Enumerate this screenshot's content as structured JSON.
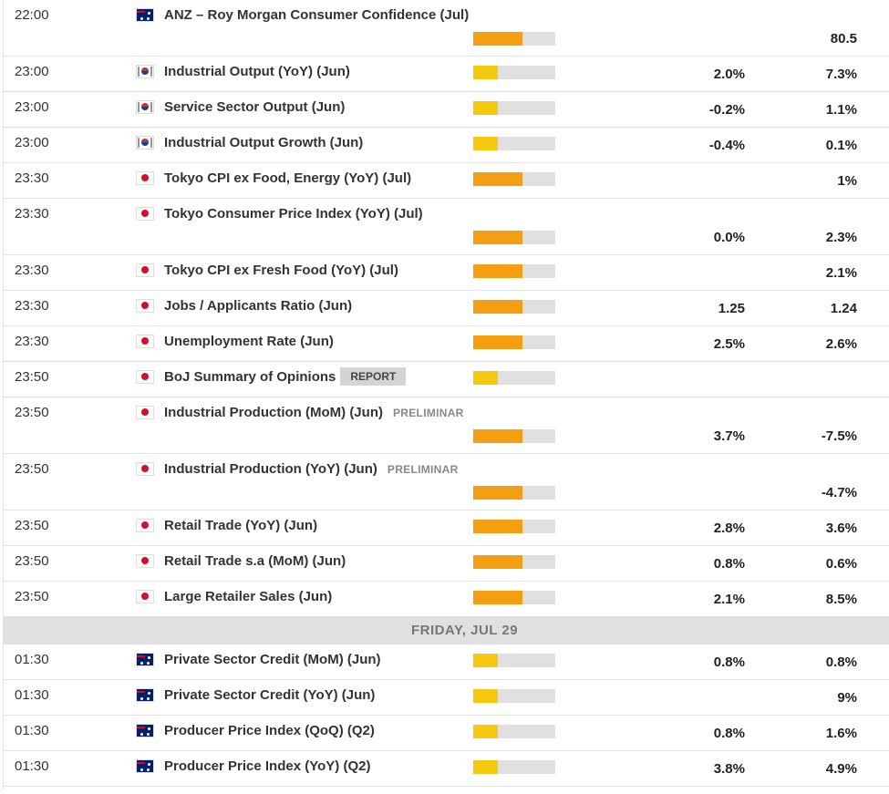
{
  "impact_colors": {
    "1": "#f5c90f",
    "2": "#f49e12"
  },
  "groups": [
    {
      "rows": [
        {
          "time": "22:00",
          "flag": "au",
          "event": "ANZ – Roy Morgan Consumer Confidence (Jul)",
          "impact": 2,
          "actual": null,
          "previous": "80.5"
        },
        {
          "time": "23:00",
          "flag": "kr",
          "event": "Industrial Output (YoY) (Jun)",
          "impact": 1,
          "actual": "2.0%",
          "previous": "7.3%"
        },
        {
          "time": "23:00",
          "flag": "kr",
          "event": "Service Sector Output (Jun)",
          "impact": 1,
          "actual": "-0.2%",
          "previous": "1.1%"
        },
        {
          "time": "23:00",
          "flag": "kr",
          "event": "Industrial Output Growth (Jun)",
          "impact": 1,
          "actual": "-0.4%",
          "previous": "0.1%"
        },
        {
          "time": "23:30",
          "flag": "jp",
          "event": "Tokyo CPI ex Food, Energy (YoY) (Jul)",
          "impact": 2,
          "actual": null,
          "previous": "1%"
        },
        {
          "time": "23:30",
          "flag": "jp",
          "event": "Tokyo Consumer Price Index (YoY) (Jul)",
          "impact": 2,
          "actual": "0.0%",
          "previous": "2.3%"
        },
        {
          "time": "23:30",
          "flag": "jp",
          "event": "Tokyo CPI ex Fresh Food (YoY) (Jul)",
          "impact": 2,
          "actual": null,
          "previous": "2.1%"
        },
        {
          "time": "23:30",
          "flag": "jp",
          "event": "Jobs / Applicants Ratio (Jun)",
          "impact": 2,
          "actual": "1.25",
          "previous": "1.24"
        },
        {
          "time": "23:30",
          "flag": "jp",
          "event": "Unemployment Rate (Jun)",
          "impact": 2,
          "actual": "2.5%",
          "previous": "2.6%"
        },
        {
          "time": "23:50",
          "flag": "jp",
          "event": "BoJ Summary of Opinions",
          "tag": "REPORT",
          "impact": 1,
          "actual": null,
          "previous": null
        },
        {
          "time": "23:50",
          "flag": "jp",
          "event": "Industrial Production (MoM) (Jun)",
          "note": "PRELIMINAR",
          "impact": 2,
          "actual": "3.7%",
          "previous": "-7.5%"
        },
        {
          "time": "23:50",
          "flag": "jp",
          "event": "Industrial Production (YoY) (Jun)",
          "note": "PRELIMINAR",
          "impact": 2,
          "actual": null,
          "previous": "-4.7%"
        },
        {
          "time": "23:50",
          "flag": "jp",
          "event": "Retail Trade (YoY) (Jun)",
          "impact": 2,
          "actual": "2.8%",
          "previous": "3.6%"
        },
        {
          "time": "23:50",
          "flag": "jp",
          "event": "Retail Trade s.a (MoM) (Jun)",
          "impact": 2,
          "actual": "0.8%",
          "previous": "0.6%"
        },
        {
          "time": "23:50",
          "flag": "jp",
          "event": "Large Retailer Sales (Jun)",
          "impact": 2,
          "actual": "2.1%",
          "previous": "8.5%"
        }
      ]
    },
    {
      "day": "FRIDAY, JUL 29",
      "rows": [
        {
          "time": "01:30",
          "flag": "au",
          "event": "Private Sector Credit (MoM) (Jun)",
          "impact": 1,
          "actual": "0.8%",
          "previous": "0.8%"
        },
        {
          "time": "01:30",
          "flag": "au",
          "event": "Private Sector Credit (YoY) (Jun)",
          "impact": 1,
          "actual": null,
          "previous": "9%"
        },
        {
          "time": "01:30",
          "flag": "au",
          "event": "Producer Price Index (QoQ) (Q2)",
          "impact": 1,
          "actual": "0.8%",
          "previous": "1.6%"
        },
        {
          "time": "01:30",
          "flag": "au",
          "event": "Producer Price Index (YoY) (Q2)",
          "impact": 1,
          "actual": "3.8%",
          "previous": "4.9%"
        }
      ]
    }
  ]
}
